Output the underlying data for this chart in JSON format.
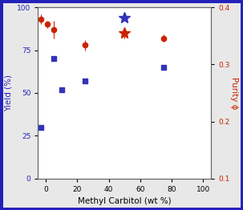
{
  "xlabel": "Methyl Carbitol (wt %)",
  "ylabel_left": "Yield (%)",
  "ylabel_right": "Purity ϕ",
  "xlim": [
    -5,
    105
  ],
  "ylim_left": [
    0,
    100
  ],
  "ylim_right": [
    0.1,
    0.4
  ],
  "xticks": [
    0,
    20,
    40,
    60,
    80,
    100
  ],
  "yticks_left": [
    0,
    25,
    50,
    75,
    100
  ],
  "yticks_right": [
    0.1,
    0.2,
    0.3,
    0.4
  ],
  "blue_squares_x": [
    -3,
    5,
    10,
    25,
    75
  ],
  "blue_squares_y": [
    30,
    70,
    52,
    57,
    65
  ],
  "red_circles_x": [
    -3,
    1,
    5,
    25,
    75
  ],
  "red_circles_y": [
    93,
    90,
    87,
    78,
    82
  ],
  "red_circles_yerr": [
    3,
    2,
    5,
    3,
    2
  ],
  "red_star_x": 50,
  "red_star_y": 85,
  "red_star_yerr": 3,
  "blue_star_x": 50,
  "blue_star_y": 94,
  "background_color": "#e8e8e8",
  "border_color": "#2222bb",
  "left_axis_color": "#2222bb",
  "right_axis_color": "#cc2200",
  "marker_blue_color": "#3333bb",
  "marker_red_color": "#cc2200"
}
